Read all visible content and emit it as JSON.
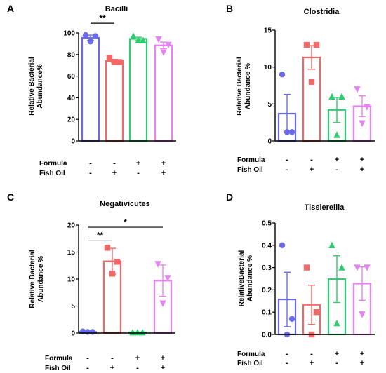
{
  "chart_data": [
    {
      "panel": "A",
      "type": "bar",
      "title": "Bacilli",
      "ylabel": [
        "Relative Bacterial",
        "Abundance%"
      ],
      "ylim": [
        0,
        100
      ],
      "yticks": [
        "0",
        "20",
        "40",
        "60",
        "80",
        "100"
      ],
      "row_labels": [
        "Formula",
        "Fish Oil"
      ],
      "groups": [
        {
          "formula": "-",
          "fish_oil": "-",
          "color": "#6b6be6",
          "marker": "circle",
          "value": 95.5,
          "sem": 2.5,
          "points": [
            98,
            97,
            92
          ]
        },
        {
          "formula": "-",
          "fish_oil": "+",
          "color": "#f06868",
          "marker": "square",
          "value": 74,
          "sem": 1.5,
          "points": [
            77,
            73,
            73
          ]
        },
        {
          "formula": "+",
          "fish_oil": "-",
          "color": "#2ecc71",
          "marker": "triangle",
          "value": 94.5,
          "sem": 1.5,
          "points": [
            97,
            93,
            93
          ]
        },
        {
          "formula": "+",
          "fish_oil": "+",
          "color": "#e683f2",
          "marker": "triangle-down",
          "value": 88.5,
          "sem": 3,
          "points": [
            94,
            89,
            82
          ]
        }
      ],
      "significance": [
        {
          "from": 0,
          "to": 1,
          "label": "**",
          "y": 109
        }
      ]
    },
    {
      "panel": "B",
      "type": "bar",
      "title": "Clostridia",
      "ylabel": [
        "Relative Bacterial",
        "Abundance  %"
      ],
      "ylim": [
        0,
        15
      ],
      "yticks": [
        "0",
        "5",
        "10",
        "15"
      ],
      "row_labels": [
        "Formula",
        "Fish Oil"
      ],
      "groups": [
        {
          "formula": "-",
          "fish_oil": "-",
          "color": "#6b6be6",
          "marker": "circle",
          "value": 3.7,
          "sem": 2.6,
          "points": [
            9.0,
            1.2,
            1.2
          ]
        },
        {
          "formula": "-",
          "fish_oil": "+",
          "color": "#f06868",
          "marker": "square",
          "value": 11.3,
          "sem": 1.6,
          "points": [
            13.0,
            13.0,
            8.0
          ]
        },
        {
          "formula": "+",
          "fish_oil": "-",
          "color": "#2ecc71",
          "marker": "triangle",
          "value": 4.2,
          "sem": 1.7,
          "points": [
            6.0,
            6.0,
            0.8
          ]
        },
        {
          "formula": "+",
          "fish_oil": "+",
          "color": "#e683f2",
          "marker": "triangle-down",
          "value": 4.7,
          "sem": 1.4,
          "points": [
            7.0,
            4.6,
            2.4
          ]
        }
      ],
      "significance": []
    },
    {
      "panel": "C",
      "type": "bar",
      "title": "Negativicutes",
      "ylabel": [
        "Relative  Bacterial",
        "Abundance  %"
      ],
      "ylim": [
        0,
        20
      ],
      "yticks": [
        "0",
        "5",
        "10",
        "15",
        "20"
      ],
      "row_labels": [
        "Formula",
        "Fish Oil"
      ],
      "groups": [
        {
          "formula": "-",
          "fish_oil": "-",
          "color": "#6b6be6",
          "marker": "circle",
          "value": 0.2,
          "sem": 0.1,
          "points": [
            0.3,
            0.2,
            0.2
          ]
        },
        {
          "formula": "-",
          "fish_oil": "+",
          "color": "#f06868",
          "marker": "square",
          "value": 13.3,
          "sem": 2.4,
          "points": [
            15.8,
            13.2,
            11.0
          ]
        },
        {
          "formula": "+",
          "fish_oil": "-",
          "color": "#2ecc71",
          "marker": "triangle",
          "value": 0.1,
          "sem": 0.05,
          "points": [
            0.1,
            0.1,
            0.1
          ]
        },
        {
          "formula": "+",
          "fish_oil": "+",
          "color": "#e683f2",
          "marker": "triangle-down",
          "value": 9.7,
          "sem": 2.9,
          "points": [
            12.8,
            10.2,
            5.5
          ]
        }
      ],
      "significance": [
        {
          "from": 0,
          "to": 3,
          "label": "*",
          "y": 19.6
        },
        {
          "from": 0,
          "to": 1,
          "label": "**",
          "y": 17.2
        }
      ]
    },
    {
      "panel": "D",
      "type": "bar",
      "title": "Tissierellia",
      "ylabel": [
        "RelativeBacterial",
        "Abundance  %"
      ],
      "ylim": [
        0,
        0.5
      ],
      "yticks": [
        "0.0",
        "0.1",
        "0.2",
        "0.3",
        "0.4",
        "0.5"
      ],
      "row_labels": [
        "Formula",
        "Fish Oil"
      ],
      "groups": [
        {
          "formula": "-",
          "fish_oil": "-",
          "color": "#6b6be6",
          "marker": "circle",
          "value": 0.157,
          "sem": 0.122,
          "points": [
            0.4,
            0.07,
            0.0
          ]
        },
        {
          "formula": "-",
          "fish_oil": "+",
          "color": "#f06868",
          "marker": "square",
          "value": 0.133,
          "sem": 0.088,
          "points": [
            0.3,
            0.1,
            0.0
          ]
        },
        {
          "formula": "+",
          "fish_oil": "-",
          "color": "#2ecc71",
          "marker": "triangle",
          "value": 0.248,
          "sem": 0.105,
          "points": [
            0.4,
            0.3,
            0.05
          ]
        },
        {
          "formula": "+",
          "fish_oil": "+",
          "color": "#e683f2",
          "marker": "triangle-down",
          "value": 0.228,
          "sem": 0.075,
          "points": [
            0.3,
            0.3,
            0.09
          ]
        }
      ],
      "significance": []
    }
  ]
}
